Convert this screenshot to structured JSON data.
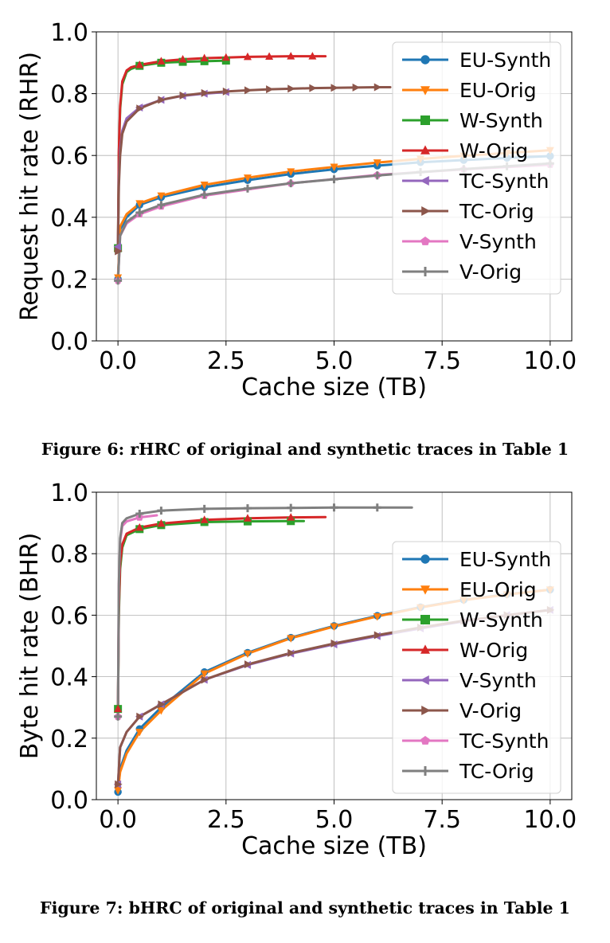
{
  "figures": [
    {
      "caption": "Figure 6: rHRC of original and synthetic traces in Table 1",
      "chart_data": {
        "type": "line",
        "xlabel": "Cache size (TB)",
        "ylabel": "Request hit rate (RHR)",
        "xlim": [
          -0.5,
          10.5
        ],
        "ylim": [
          0.0,
          1.0
        ],
        "xticks": [
          "0.0",
          "2.5",
          "5.0",
          "7.5",
          "10.0"
        ],
        "yticks": [
          "0.0",
          "0.2",
          "0.4",
          "0.6",
          "0.8",
          "1.0"
        ],
        "grid": true,
        "legend_position": "upper-right",
        "series": [
          {
            "name": "EU-Synth",
            "color": "#1f77b4",
            "marker": "circle",
            "x": [
              0,
              0.05,
              0.2,
              0.5,
              1,
              2,
              3,
              4,
              5,
              6,
              7,
              8,
              9,
              10
            ],
            "y": [
              0.2,
              0.36,
              0.4,
              0.44,
              0.465,
              0.497,
              0.52,
              0.54,
              0.555,
              0.567,
              0.578,
              0.585,
              0.592,
              0.598
            ]
          },
          {
            "name": "EU-Orig",
            "color": "#ff7f0e",
            "marker": "triangle-down",
            "x": [
              0,
              0.05,
              0.2,
              0.5,
              1,
              2,
              3,
              4,
              5,
              6,
              7,
              8,
              9,
              10
            ],
            "y": [
              0.205,
              0.37,
              0.41,
              0.445,
              0.47,
              0.505,
              0.528,
              0.548,
              0.563,
              0.577,
              0.589,
              0.599,
              0.608,
              0.617
            ]
          },
          {
            "name": "W-Synth",
            "color": "#2ca02c",
            "marker": "square",
            "x": [
              0,
              0.02,
              0.05,
              0.1,
              0.2,
              0.3,
              0.5,
              1,
              1.5,
              2,
              2.5
            ],
            "y": [
              0.3,
              0.6,
              0.75,
              0.83,
              0.87,
              0.88,
              0.89,
              0.9,
              0.903,
              0.905,
              0.907
            ]
          },
          {
            "name": "W-Orig",
            "color": "#d62728",
            "marker": "triangle-up",
            "x": [
              0,
              0.02,
              0.05,
              0.1,
              0.2,
              0.3,
              0.5,
              1,
              1.5,
              2,
              2.5,
              3,
              3.5,
              4,
              4.5,
              4.8
            ],
            "y": [
              0.3,
              0.61,
              0.76,
              0.84,
              0.875,
              0.885,
              0.893,
              0.905,
              0.911,
              0.915,
              0.917,
              0.919,
              0.92,
              0.921,
              0.921,
              0.921
            ]
          },
          {
            "name": "TC-Synth",
            "color": "#9467bd",
            "marker": "triangle-left",
            "x": [
              0,
              0.02,
              0.05,
              0.1,
              0.2,
              0.5,
              1,
              1.5,
              2,
              2.5
            ],
            "y": [
              0.305,
              0.52,
              0.62,
              0.68,
              0.72,
              0.755,
              0.78,
              0.793,
              0.8,
              0.805
            ]
          },
          {
            "name": "TC-Orig",
            "color": "#8c564b",
            "marker": "triangle-right",
            "x": [
              0,
              0.02,
              0.05,
              0.1,
              0.2,
              0.5,
              1,
              1.5,
              2,
              2.5,
              3,
              3.5,
              4,
              4.5,
              5,
              5.5,
              6,
              6.3
            ],
            "y": [
              0.29,
              0.5,
              0.6,
              0.67,
              0.71,
              0.752,
              0.78,
              0.794,
              0.802,
              0.807,
              0.811,
              0.814,
              0.816,
              0.818,
              0.819,
              0.82,
              0.821,
              0.821
            ]
          },
          {
            "name": "V-Synth",
            "color": "#e377c2",
            "marker": "pentagon",
            "x": [
              0,
              0.05,
              0.2,
              0.5,
              1,
              2,
              4,
              6,
              8,
              10
            ],
            "y": [
              0.195,
              0.34,
              0.38,
              0.41,
              0.435,
              0.47,
              0.51,
              0.537,
              0.555,
              0.57
            ]
          },
          {
            "name": "V-Orig",
            "color": "#7f7f7f",
            "marker": "plus",
            "x": [
              0,
              0.05,
              0.2,
              0.5,
              1,
              2,
              3,
              4,
              5,
              6,
              7,
              8,
              9,
              10
            ],
            "y": [
              0.195,
              0.34,
              0.385,
              0.415,
              0.44,
              0.473,
              0.493,
              0.51,
              0.523,
              0.535,
              0.546,
              0.556,
              0.565,
              0.574
            ]
          }
        ]
      }
    },
    {
      "caption": "Figure 7: bHRC of original and synthetic traces in Table 1",
      "chart_data": {
        "type": "line",
        "xlabel": "Cache size (TB)",
        "ylabel": "Byte hit rate (BHR)",
        "xlim": [
          -0.5,
          10.5
        ],
        "ylim": [
          0.0,
          1.0
        ],
        "xticks": [
          "0.0",
          "2.5",
          "5.0",
          "7.5",
          "10.0"
        ],
        "yticks": [
          "0.0",
          "0.2",
          "0.4",
          "0.6",
          "0.8",
          "1.0"
        ],
        "grid": true,
        "legend_position": "center-right",
        "series": [
          {
            "name": "EU-Synth",
            "color": "#1f77b4",
            "marker": "circle",
            "x": [
              0,
              0.05,
              0.2,
              0.5,
              1,
              2,
              3,
              4,
              5,
              6,
              7,
              8,
              9,
              10
            ],
            "y": [
              0.025,
              0.1,
              0.16,
              0.23,
              0.3,
              0.415,
              0.478,
              0.527,
              0.565,
              0.598,
              0.626,
              0.65,
              0.668,
              0.683
            ]
          },
          {
            "name": "EU-Orig",
            "color": "#ff7f0e",
            "marker": "triangle-down",
            "x": [
              0,
              0.05,
              0.2,
              0.5,
              1,
              2,
              3,
              4,
              5,
              6,
              7,
              8,
              9,
              10
            ],
            "y": [
              0.03,
              0.09,
              0.15,
              0.22,
              0.29,
              0.41,
              0.475,
              0.525,
              0.563,
              0.596,
              0.625,
              0.649,
              0.667,
              0.683
            ]
          },
          {
            "name": "W-Synth",
            "color": "#2ca02c",
            "marker": "square",
            "x": [
              0,
              0.02,
              0.05,
              0.1,
              0.2,
              0.5,
              1,
              2,
              3,
              4,
              4.3
            ],
            "y": [
              0.295,
              0.6,
              0.75,
              0.82,
              0.86,
              0.88,
              0.893,
              0.903,
              0.905,
              0.906,
              0.906
            ]
          },
          {
            "name": "W-Orig",
            "color": "#d62728",
            "marker": "triangle-up",
            "x": [
              0,
              0.02,
              0.05,
              0.1,
              0.2,
              0.5,
              1,
              2,
              3,
              4,
              4.8
            ],
            "y": [
              0.295,
              0.62,
              0.77,
              0.83,
              0.865,
              0.885,
              0.898,
              0.91,
              0.915,
              0.918,
              0.919
            ]
          },
          {
            "name": "V-Synth",
            "color": "#9467bd",
            "marker": "triangle-left",
            "x": [
              0,
              0.05,
              0.2,
              0.5,
              1,
              2,
              3,
              4,
              5,
              6,
              7,
              8,
              9,
              10
            ],
            "y": [
              0.05,
              0.17,
              0.22,
              0.27,
              0.31,
              0.39,
              0.438,
              0.475,
              0.505,
              0.532,
              0.557,
              0.58,
              0.6,
              0.617
            ]
          },
          {
            "name": "V-Orig",
            "color": "#8c564b",
            "marker": "triangle-right",
            "x": [
              0,
              0.05,
              0.2,
              0.5,
              1,
              2,
              3,
              4,
              5,
              6,
              7,
              8,
              9,
              10
            ],
            "y": [
              0.05,
              0.17,
              0.22,
              0.27,
              0.31,
              0.39,
              0.44,
              0.477,
              0.508,
              0.535,
              0.56,
              0.582,
              0.6,
              0.617
            ]
          },
          {
            "name": "TC-Synth",
            "color": "#e377c2",
            "marker": "pentagon",
            "x": [
              0,
              0.02,
              0.05,
              0.1,
              0.2,
              0.5,
              0.9
            ],
            "y": [
              0.27,
              0.7,
              0.84,
              0.89,
              0.905,
              0.918,
              0.925
            ]
          },
          {
            "name": "TC-Orig",
            "color": "#7f7f7f",
            "marker": "plus",
            "x": [
              0,
              0.02,
              0.05,
              0.1,
              0.2,
              0.5,
              1,
              2,
              3,
              4,
              5,
              6,
              6.8
            ],
            "y": [
              0.27,
              0.7,
              0.85,
              0.9,
              0.915,
              0.93,
              0.94,
              0.946,
              0.948,
              0.949,
              0.95,
              0.95,
              0.95
            ]
          }
        ]
      }
    }
  ]
}
